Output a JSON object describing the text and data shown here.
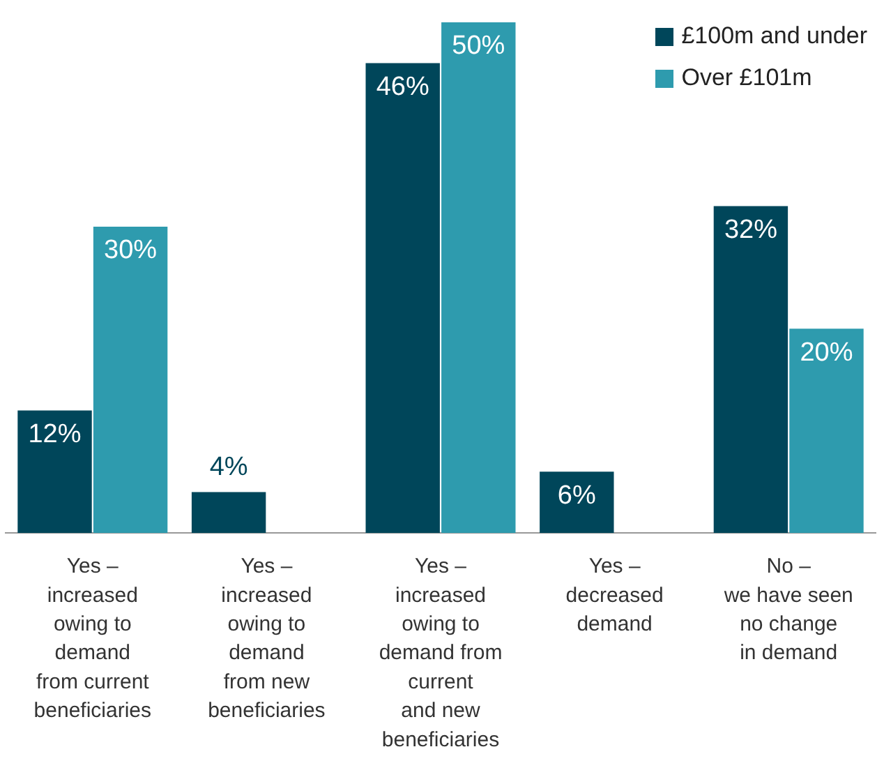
{
  "chart_data": {
    "type": "bar",
    "categories": [
      "Yes –\nincreased\nowing to\ndemand\nfrom current\nbeneficiaries",
      "Yes –\nincreased\nowing to\ndemand\nfrom new\nbeneficiaries",
      "Yes –\nincreased\nowing to\ndemand from\ncurrent\nand new\nbeneficiaries",
      "Yes –\ndecreased\ndemand",
      "No –\nwe have seen\nno change\nin demand"
    ],
    "series": [
      {
        "name": "£100m and under",
        "color": "#00465a",
        "values": [
          12,
          4,
          46,
          6,
          32
        ],
        "value_labels": [
          "12%",
          "4%",
          "46%",
          "6%",
          "32%"
        ]
      },
      {
        "name": "Over £101m",
        "color": "#2e9bae",
        "values": [
          30,
          null,
          50,
          null,
          20
        ],
        "value_labels": [
          "30%",
          null,
          "50%",
          null,
          "20%"
        ]
      }
    ],
    "tick_labels": "x",
    "legend": "top right",
    "grid": false
  }
}
